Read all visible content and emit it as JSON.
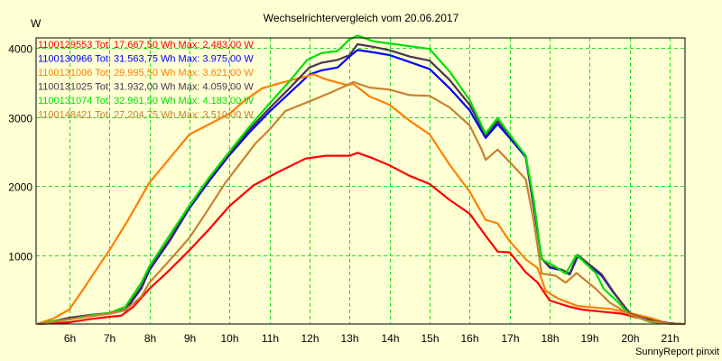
{
  "chart_data": {
    "type": "line",
    "title": "Wechselrichtervergleich vom 20.06.2017",
    "ylabel": "W",
    "xlabel": "",
    "credit": "SunnyReport pinxit",
    "xlim": [
      5.17,
      21.38
    ],
    "ylim": [
      0,
      4150
    ],
    "grid": true,
    "legend_position": "top-left",
    "x_ticks": [
      6,
      7,
      8,
      9,
      10,
      11,
      12,
      13,
      14,
      15,
      16,
      17,
      18,
      19,
      20,
      21
    ],
    "x_tick_labels": [
      "6h",
      "7h",
      "8h",
      "9h",
      "10h",
      "11h",
      "12h",
      "13h",
      "14h",
      "15h",
      "16h",
      "17h",
      "18h",
      "19h",
      "20h",
      "21h"
    ],
    "y_ticks": [
      1000,
      2000,
      3000,
      4000
    ],
    "y_tick_labels": [
      "1000",
      "2000",
      "3000",
      "4000"
    ],
    "series": [
      {
        "name": "1100129553",
        "legend": "1100129553 Tot: 17.667,50 Wh Max: 2.483,00 W",
        "color": "#ff0000",
        "x": [
          5.2,
          5.6,
          6.0,
          6.5,
          7.0,
          7.3,
          7.6,
          8.0,
          8.5,
          9.0,
          9.5,
          10.0,
          10.6,
          11.2,
          11.9,
          12.4,
          13.0,
          13.2,
          13.6,
          14.0,
          14.5,
          15.0,
          15.5,
          16.0,
          16.4,
          16.7,
          17.0,
          17.4,
          17.7,
          18.0,
          18.5,
          18.8,
          19.3,
          19.8,
          20.2,
          20.7,
          21.0,
          21.3
        ],
        "y": [
          0,
          10,
          25,
          70,
          105,
          120,
          250,
          510,
          780,
          1070,
          1380,
          1710,
          2010,
          2200,
          2400,
          2440,
          2440,
          2483,
          2400,
          2300,
          2150,
          2030,
          1800,
          1600,
          1280,
          1050,
          1040,
          750,
          600,
          340,
          250,
          210,
          180,
          150,
          90,
          40,
          10,
          0
        ]
      },
      {
        "name": "1100130966",
        "legend": "1100130966 Tot: 31.563,75 Wh Max: 3.975,00 W",
        "color": "#0000ff",
        "x": [
          5.2,
          5.6,
          6.0,
          6.5,
          7.0,
          7.4,
          7.8,
          8.0,
          8.5,
          9.0,
          9.5,
          10.0,
          10.5,
          11.0,
          11.5,
          12.0,
          12.3,
          12.7,
          13.0,
          13.2,
          13.6,
          14.0,
          14.5,
          15.0,
          15.5,
          16.0,
          16.4,
          16.7,
          17.0,
          17.4,
          17.6,
          17.8,
          18.0,
          18.3,
          18.5,
          18.7,
          19.0,
          19.3,
          19.6,
          20.0,
          20.5,
          21.0,
          21.3
        ],
        "y": [
          0,
          30,
          80,
          120,
          150,
          200,
          520,
          780,
          1200,
          1680,
          2080,
          2450,
          2780,
          3080,
          3350,
          3620,
          3680,
          3720,
          3880,
          3975,
          3940,
          3900,
          3800,
          3700,
          3420,
          3100,
          2700,
          2900,
          2700,
          2420,
          1700,
          950,
          820,
          780,
          720,
          980,
          850,
          700,
          450,
          160,
          60,
          10,
          0
        ]
      },
      {
        "name": "1100131006",
        "legend": "1100131006 Tot: 29.995,50 Wh Max: 3.621,00 W",
        "color": "#ff8000",
        "x": [
          5.2,
          5.6,
          6.0,
          6.4,
          6.8,
          7.0,
          7.45,
          8.0,
          8.5,
          9.0,
          9.5,
          10.0,
          10.4,
          10.82,
          11.3,
          11.9,
          12.1,
          12.4,
          12.9,
          13.1,
          13.5,
          14.0,
          14.5,
          15.0,
          15.5,
          16.0,
          16.4,
          16.7,
          17.0,
          17.4,
          17.7,
          17.9,
          18.2,
          18.7,
          19.1,
          19.5,
          20.0,
          20.5,
          21.0
        ],
        "y": [
          0,
          80,
          210,
          550,
          900,
          1070,
          1490,
          2050,
          2400,
          2750,
          2900,
          3050,
          3250,
          3420,
          3500,
          3590,
          3621,
          3550,
          3470,
          3480,
          3300,
          3180,
          2950,
          2750,
          2310,
          1920,
          1510,
          1460,
          1200,
          940,
          810,
          480,
          370,
          260,
          240,
          220,
          160,
          90,
          0
        ]
      },
      {
        "name": "1100131025",
        "legend": "1100131025 Tot: 31.932,00 Wh Max: 4.059,00 W",
        "color": "#4b3350",
        "x": [
          5.2,
          5.6,
          6.0,
          6.5,
          7.0,
          7.4,
          7.8,
          8.0,
          8.5,
          9.0,
          9.5,
          10.0,
          10.5,
          11.0,
          11.5,
          12.0,
          12.3,
          12.7,
          13.0,
          13.2,
          13.6,
          14.0,
          14.5,
          15.0,
          15.5,
          16.0,
          16.4,
          16.7,
          17.0,
          17.4,
          17.6,
          17.8,
          18.0,
          18.3,
          18.5,
          18.7,
          19.0,
          19.3,
          19.6,
          20.0,
          20.5,
          21.0,
          21.3
        ],
        "y": [
          0,
          40,
          90,
          130,
          160,
          210,
          540,
          800,
          1220,
          1700,
          2110,
          2470,
          2820,
          3130,
          3420,
          3720,
          3790,
          3830,
          3900,
          4059,
          4020,
          3970,
          3880,
          3820,
          3540,
          3180,
          2740,
          2940,
          2740,
          2440,
          1720,
          950,
          830,
          790,
          730,
          1000,
          860,
          720,
          460,
          150,
          50,
          10,
          0
        ]
      },
      {
        "name": "1100131074",
        "legend": "1100131074 Tot: 32.961,50 Wh Max: 4.183,00 W",
        "color": "#00e000",
        "x": [
          5.2,
          5.6,
          6.0,
          6.5,
          7.0,
          7.4,
          7.8,
          8.0,
          8.5,
          9.0,
          9.5,
          10.0,
          10.5,
          11.0,
          11.5,
          11.94,
          12.3,
          12.7,
          13.0,
          13.2,
          13.6,
          14.0,
          14.5,
          15.0,
          15.5,
          16.0,
          16.4,
          16.7,
          17.0,
          17.4,
          17.6,
          17.8,
          18.15,
          18.4,
          18.67,
          19.15,
          19.35,
          19.7,
          20.0,
          20.5,
          21.0,
          21.3
        ],
        "y": [
          0,
          40,
          65,
          120,
          160,
          250,
          600,
          835,
          1280,
          1720,
          2130,
          2500,
          2860,
          3200,
          3520,
          3830,
          3930,
          3960,
          4130,
          4183,
          4100,
          4070,
          4030,
          3990,
          3660,
          3250,
          2760,
          2990,
          2750,
          2440,
          1800,
          940,
          830,
          730,
          1000,
          740,
          510,
          320,
          140,
          30,
          5,
          0
        ]
      },
      {
        "name": "1100148421",
        "legend": "1100148421 Tot: 27.204,75 Wh Max: 3.510,00 W",
        "color": "#c88232",
        "x": [
          5.2,
          5.6,
          6.0,
          6.5,
          7.0,
          7.4,
          7.8,
          8.0,
          8.5,
          9.0,
          9.4,
          9.9,
          10.65,
          11.0,
          11.4,
          12.0,
          12.5,
          13.0,
          13.1,
          13.5,
          14.0,
          14.5,
          15.0,
          15.5,
          16.0,
          16.3,
          16.4,
          16.7,
          17.0,
          17.4,
          17.6,
          17.8,
          18.15,
          18.4,
          18.67,
          19.15,
          19.5,
          20.0,
          20.5,
          21.0,
          21.38
        ],
        "y": [
          0,
          30,
          70,
          110,
          150,
          200,
          400,
          600,
          920,
          1250,
          1600,
          2050,
          2620,
          2820,
          3090,
          3230,
          3350,
          3480,
          3510,
          3430,
          3400,
          3320,
          3310,
          3140,
          2880,
          2530,
          2380,
          2530,
          2350,
          2100,
          1500,
          730,
          700,
          600,
          740,
          510,
          310,
          140,
          40,
          5,
          0
        ]
      }
    ]
  }
}
